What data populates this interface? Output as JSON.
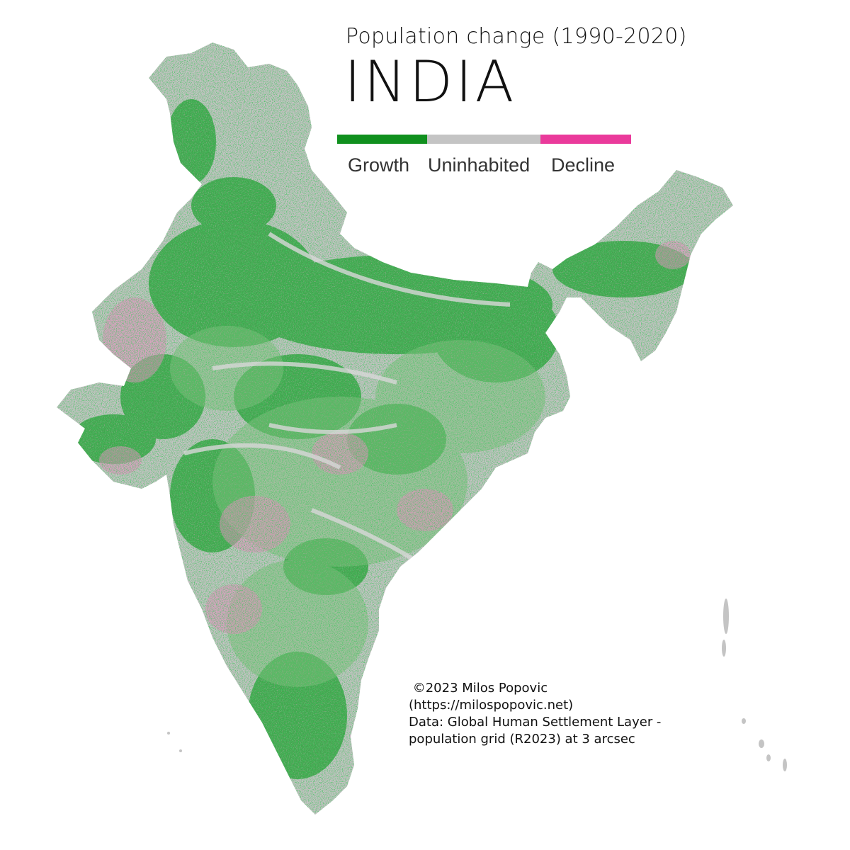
{
  "header": {
    "subtitle": "Population change (1990-2020)",
    "title": "INDIA"
  },
  "legend": {
    "items": [
      {
        "label": "Growth",
        "color": "#10901e"
      },
      {
        "label": "Uninhabited",
        "color": "#c4c4c4"
      },
      {
        "label": "Decline",
        "color": "#ea3a9b"
      }
    ]
  },
  "credits": {
    "line1": " ©2023 Milos Popovic",
    "line2": "(https://milospopovic.net)",
    "line3": "Data: Global Human Settlement Layer -",
    "line4": "population grid (R2023) at 3 arcsec"
  },
  "colors": {
    "growth": "#10901e",
    "uninhabited": "#c4c4c4",
    "decline": "#ea3a9b",
    "background": "#ffffff"
  }
}
